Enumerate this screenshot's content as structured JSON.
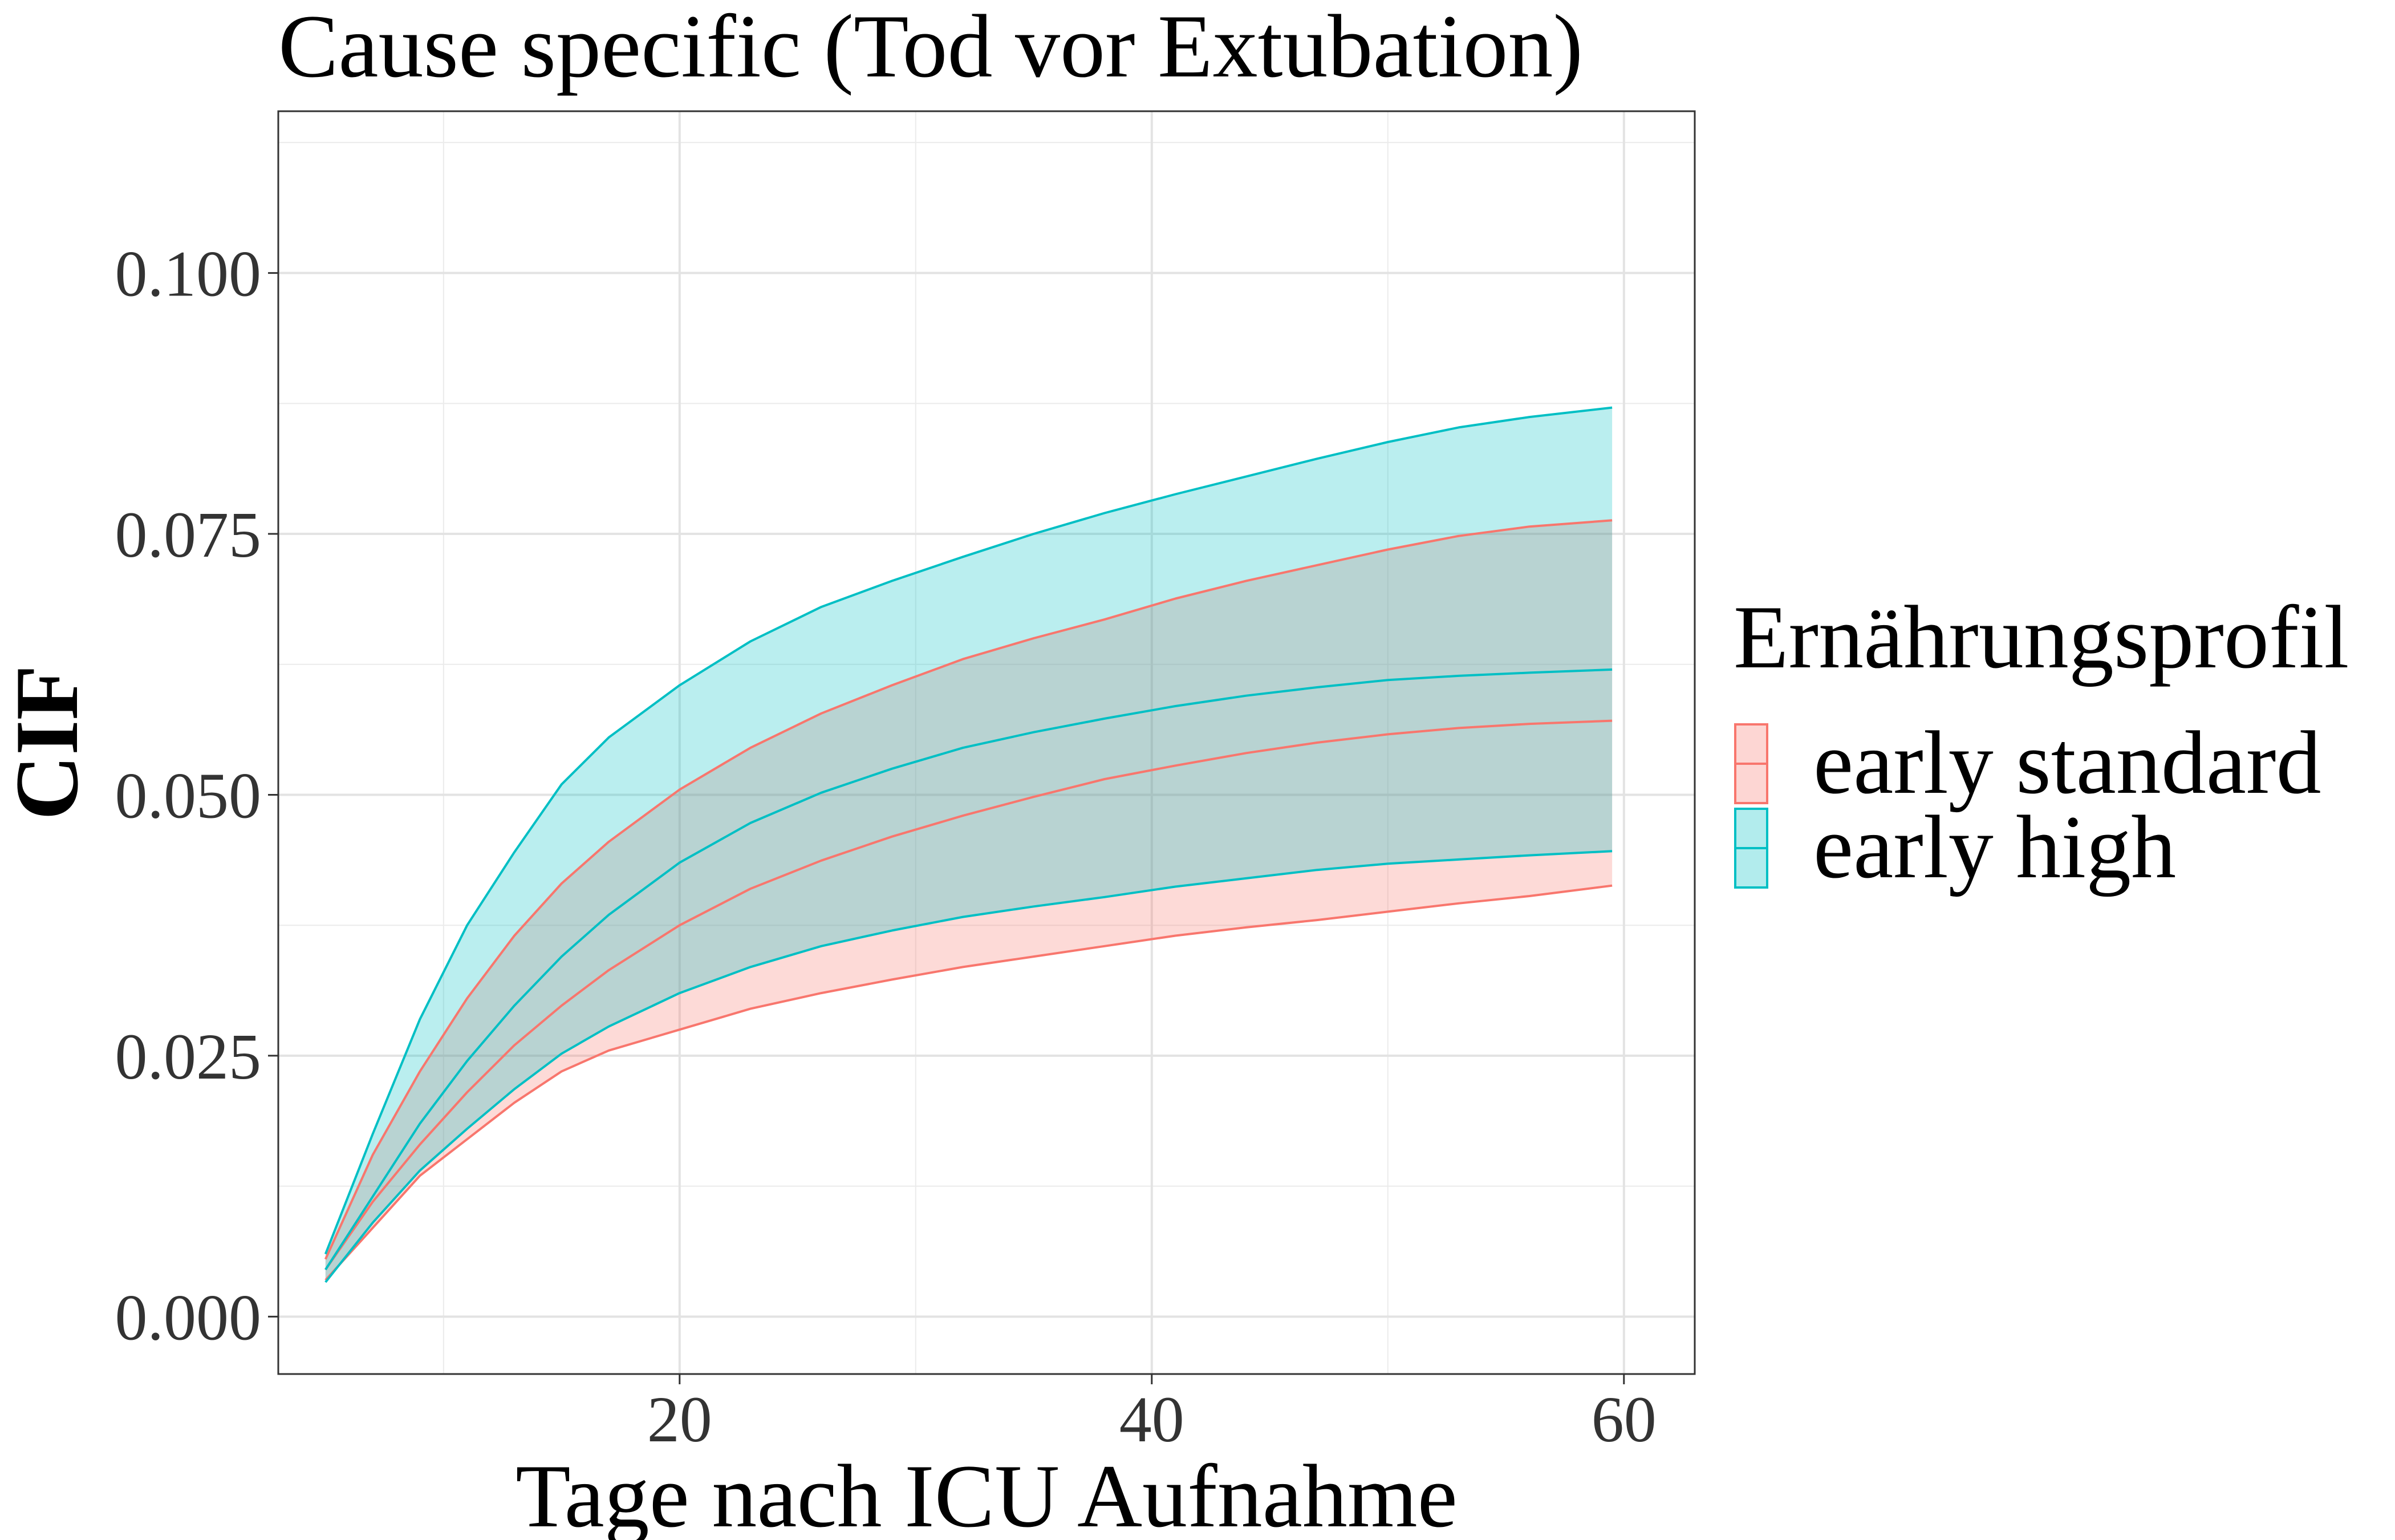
{
  "chart_data": {
    "type": "area",
    "title": "Cause specific (Tod vor Extubation)",
    "xlabel": "Tage nach ICU Aufnahme",
    "ylabel": "CIF",
    "xlim": [
      3,
      63
    ],
    "ylim": [
      -0.0055,
      0.1155
    ],
    "x_ticks": [
      20,
      40,
      60
    ],
    "x_tick_labels": [
      "20",
      "40",
      "60"
    ],
    "x_minor_ticks": [
      10,
      30,
      50
    ],
    "y_ticks": [
      0.0,
      0.025,
      0.05,
      0.075,
      0.1
    ],
    "y_tick_labels": [
      "0.000",
      "0.025",
      "0.050",
      "0.075",
      "0.100"
    ],
    "y_minor_ticks": [
      0.0125,
      0.0375,
      0.0625,
      0.0875,
      0.1125
    ],
    "grid": true,
    "legend": {
      "title": "Ernährungsprofil",
      "position": "right"
    },
    "x": [
      5,
      7,
      9,
      11,
      13,
      15,
      17,
      20,
      23,
      26,
      29,
      32,
      35,
      38,
      41,
      44,
      47,
      50,
      53,
      56,
      59.5
    ],
    "series": [
      {
        "name": "early standard",
        "color": "#F8766D",
        "fill": "#F8766D",
        "estimate": [
          0.0045,
          0.011,
          0.0165,
          0.0215,
          0.026,
          0.0298,
          0.0332,
          0.0375,
          0.041,
          0.0437,
          0.046,
          0.048,
          0.0498,
          0.0515,
          0.0528,
          0.054,
          0.055,
          0.0558,
          0.0564,
          0.0568,
          0.0571
        ],
        "lower": [
          0.0035,
          0.0085,
          0.0135,
          0.017,
          0.0205,
          0.0235,
          0.0255,
          0.0275,
          0.0295,
          0.031,
          0.0323,
          0.0335,
          0.0345,
          0.0355,
          0.0365,
          0.0373,
          0.038,
          0.0388,
          0.0396,
          0.0403,
          0.0413
        ],
        "upper": [
          0.0055,
          0.0155,
          0.0235,
          0.0305,
          0.0365,
          0.0415,
          0.0455,
          0.0505,
          0.0545,
          0.0578,
          0.0605,
          0.063,
          0.065,
          0.0668,
          0.0688,
          0.0705,
          0.072,
          0.0735,
          0.0748,
          0.0757,
          0.0763
        ]
      },
      {
        "name": "early high",
        "color": "#00BFC4",
        "fill": "#00BFC4",
        "estimate": [
          0.0045,
          0.0115,
          0.0185,
          0.0245,
          0.0298,
          0.0345,
          0.0385,
          0.0435,
          0.0473,
          0.0502,
          0.0525,
          0.0545,
          0.056,
          0.0573,
          0.0585,
          0.0595,
          0.0603,
          0.061,
          0.0614,
          0.0617,
          0.062
        ],
        "lower": [
          0.0033,
          0.009,
          0.014,
          0.018,
          0.0218,
          0.0252,
          0.0278,
          0.031,
          0.0335,
          0.0355,
          0.037,
          0.0383,
          0.0393,
          0.0402,
          0.0412,
          0.042,
          0.0428,
          0.0434,
          0.0438,
          0.0442,
          0.0446
        ],
        "upper": [
          0.006,
          0.0175,
          0.0285,
          0.0375,
          0.0445,
          0.051,
          0.0555,
          0.0605,
          0.0647,
          0.068,
          0.0705,
          0.0728,
          0.075,
          0.077,
          0.0788,
          0.0805,
          0.0822,
          0.0838,
          0.0852,
          0.0862,
          0.0871
        ]
      }
    ]
  }
}
